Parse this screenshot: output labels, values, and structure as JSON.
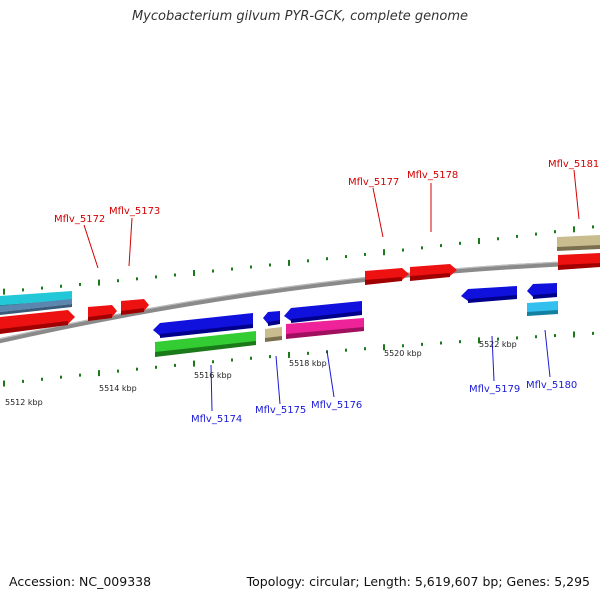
{
  "title": "Mycobacterium gilvum PYR-GCK, complete genome",
  "footer": {
    "accession": "Accession: NC_009338",
    "summary": "Topology: circular; Length: 5,619,607 bp; Genes: 5,295"
  },
  "scale_labels": [
    "5512 kbp",
    "5514 kbp",
    "5516 kbp",
    "5518 kbp",
    "5520 kbp",
    "5522 kbp"
  ],
  "gene_labels_top": [
    "Mflv_5172",
    "Mflv_5173",
    "Mflv_5177",
    "Mflv_5178",
    "Mflv_5181"
  ],
  "gene_labels_bottom": [
    "Mflv_5174",
    "Mflv_5175",
    "Mflv_5176",
    "Mflv_5179",
    "Mflv_5180"
  ],
  "colors": {
    "backbone": "#888888",
    "ticks": "#1a7a1a",
    "label_top": "#d40000",
    "label_bottom": "#1a1ad6",
    "red": "#ee1111",
    "blue": "#1111dd",
    "cyan": "#22c8d8",
    "steel": "#5a86b0",
    "green": "#33cc33",
    "magenta": "#ee2299",
    "khaki": "#c2b88a",
    "lightblue": "#33c0ee"
  }
}
